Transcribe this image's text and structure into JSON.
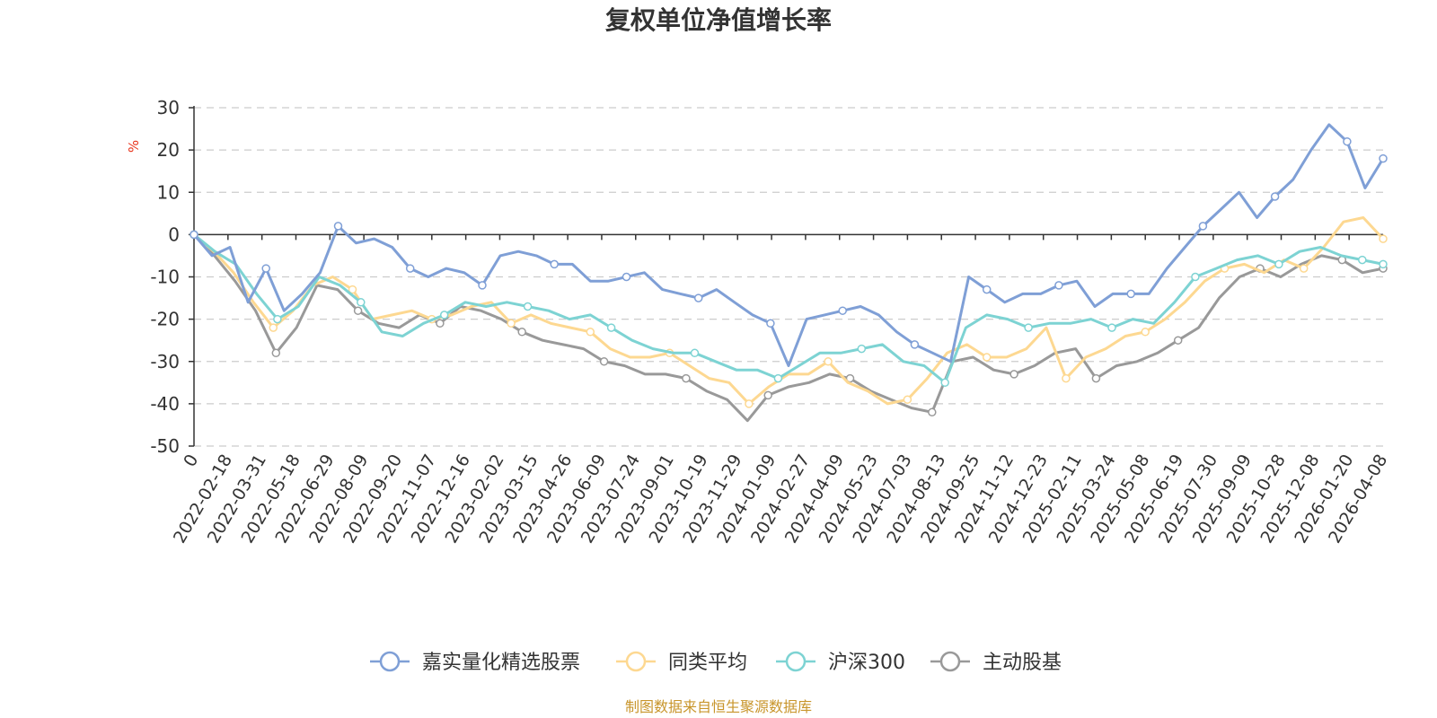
{
  "chart_data": {
    "type": "line",
    "title": "复权单位净值增长率",
    "ylabel": "%",
    "ylim": [
      -50,
      30
    ],
    "yticks": [
      30,
      20,
      10,
      0,
      -10,
      -20,
      -30,
      -40,
      -50
    ],
    "x_tick_labels": [
      "0",
      "2022-02-18",
      "2022-03-31",
      "2022-05-18",
      "2022-06-29",
      "2022-08-09",
      "2022-09-20",
      "2022-11-07",
      "2022-12-16",
      "2023-02-02",
      "2023-03-15",
      "2023-04-26",
      "2023-06-09",
      "2023-07-24",
      "2023-09-01",
      "2023-10-19",
      "2023-11-29",
      "2024-01-09",
      "2024-02-27",
      "2024-04-09",
      "2024-05-23",
      "2024-07-03",
      "2024-08-13",
      "2024-09-25",
      "2024-11-12",
      "2024-12-23",
      "2025-02-11",
      "2025-03-24",
      "2025-05-08",
      "2025-06-19",
      "2025-07-30",
      "2025-09-09",
      "2025-10-28",
      "2025-12-08",
      "2026-01-20",
      "2026-04-08"
    ],
    "grid": true,
    "legend_position": "bottom",
    "series": [
      {
        "name": "嘉实量化精选股票",
        "color": "#7f9fd6",
        "values": [
          0,
          -5,
          -3,
          -16,
          -8,
          -18,
          -14,
          -9,
          2,
          -2,
          -1,
          -3,
          -8,
          -10,
          -8,
          -9,
          -12,
          -5,
          -4,
          -5,
          -7,
          -7,
          -11,
          -11,
          -10,
          -9,
          -13,
          -14,
          -15,
          -13,
          -16,
          -19,
          -21,
          -31,
          -20,
          -19,
          -18,
          -17,
          -19,
          -23,
          -26,
          -28,
          -30,
          -10,
          -13,
          -16,
          -14,
          -14,
          -12,
          -11,
          -17,
          -14,
          -14,
          -14,
          -8,
          -3,
          2,
          6,
          10,
          4,
          9,
          13,
          20,
          26,
          22,
          11,
          18
        ]
      },
      {
        "name": "同类平均",
        "color": "#fdd891",
        "values": [
          0,
          -4,
          -9,
          -16,
          -22,
          -18,
          -12,
          -10,
          -13,
          -20,
          -19,
          -18,
          -20,
          -19,
          -17,
          -16,
          -21,
          -19,
          -21,
          -22,
          -23,
          -27,
          -29,
          -29,
          -28,
          -31,
          -34,
          -35,
          -40,
          -36,
          -33,
          -33,
          -30,
          -35,
          -37,
          -40,
          -39,
          -34,
          -28,
          -26,
          -29,
          -29,
          -27,
          -22,
          -34,
          -29,
          -27,
          -24,
          -23,
          -20,
          -16,
          -11,
          -8,
          -7,
          -9,
          -6,
          -8,
          -3,
          3,
          4,
          -1
        ]
      },
      {
        "name": "沪深300",
        "color": "#7dd3d3",
        "values": [
          0,
          -4,
          -7,
          -14,
          -20,
          -17,
          -10,
          -12,
          -16,
          -23,
          -24,
          -21,
          -19,
          -16,
          -17,
          -16,
          -17,
          -18,
          -20,
          -19,
          -22,
          -25,
          -27,
          -28,
          -28,
          -30,
          -32,
          -32,
          -34,
          -31,
          -28,
          -28,
          -27,
          -26,
          -30,
          -31,
          -35,
          -22,
          -19,
          -20,
          -22,
          -21,
          -21,
          -20,
          -22,
          -20,
          -21,
          -16,
          -10,
          -8,
          -6,
          -5,
          -7,
          -4,
          -3,
          -5,
          -6,
          -7
        ]
      },
      {
        "name": "主动股基",
        "color": "#999999",
        "values": [
          0,
          -5,
          -11,
          -18,
          -28,
          -22,
          -12,
          -13,
          -18,
          -21,
          -22,
          -19,
          -21,
          -17,
          -18,
          -20,
          -23,
          -25,
          -26,
          -27,
          -30,
          -31,
          -33,
          -33,
          -34,
          -37,
          -39,
          -44,
          -38,
          -36,
          -35,
          -33,
          -34,
          -37,
          -39,
          -41,
          -42,
          -30,
          -29,
          -32,
          -33,
          -31,
          -28,
          -27,
          -34,
          -31,
          -30,
          -28,
          -25,
          -22,
          -15,
          -10,
          -8,
          -10,
          -7,
          -5,
          -6,
          -9,
          -8
        ]
      }
    ]
  },
  "legend": [
    {
      "label": "嘉实量化精选股票"
    },
    {
      "label": "同类平均"
    },
    {
      "label": "沪深300"
    },
    {
      "label": "主动股基"
    }
  ],
  "source_note": "制图数据来自恒生聚源数据库"
}
